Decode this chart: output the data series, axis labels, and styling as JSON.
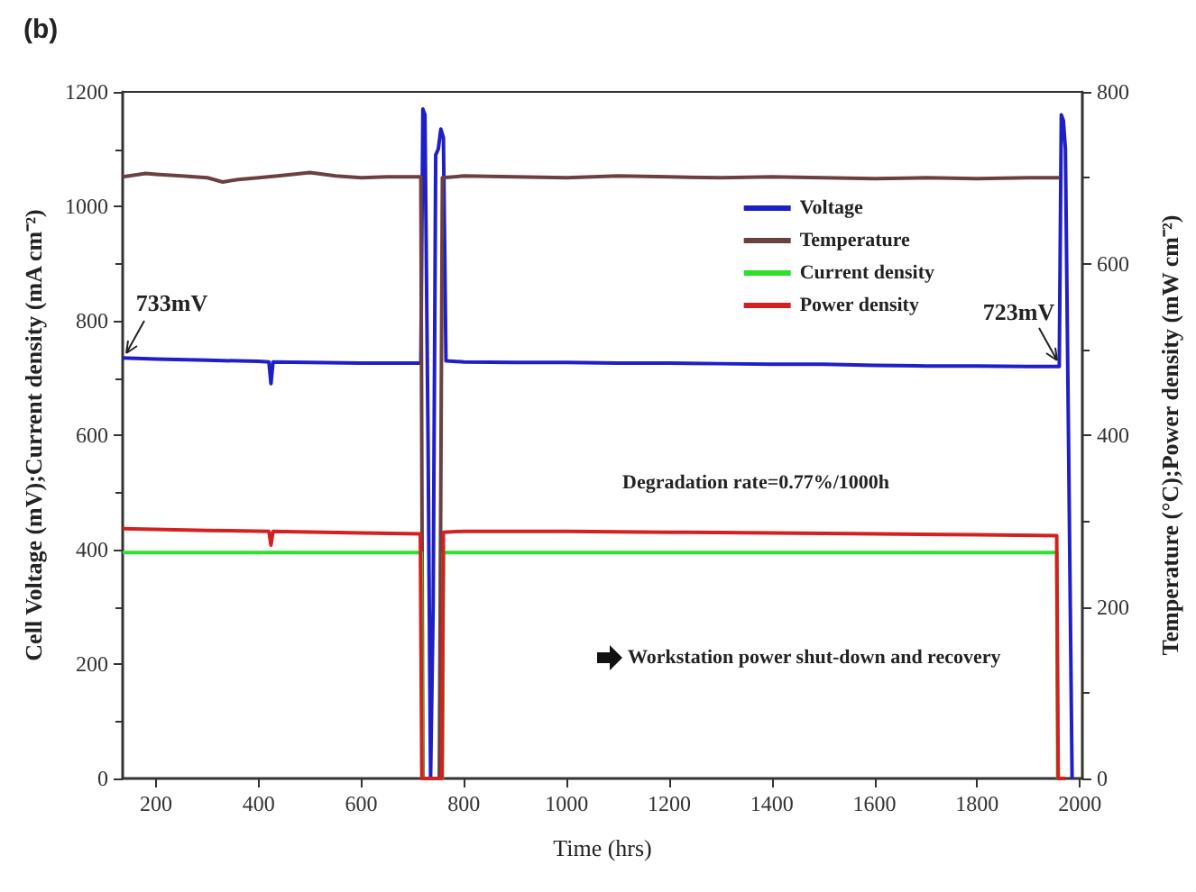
{
  "chart_data": {
    "type": "line",
    "title": "(b)",
    "xlabel": "Time (hrs)",
    "ylabel": "Cell Voltage (mV);Current density (mA cm⁻²)",
    "y2label": "Temperature (°C);Power density (mW cm⁻²)",
    "xlim": [
      135,
      2005
    ],
    "xticks": [
      200,
      400,
      600,
      800,
      1000,
      1200,
      1400,
      1600,
      1800,
      2000
    ],
    "ylim": [
      0,
      1200
    ],
    "yticks": [
      0,
      200,
      400,
      600,
      800,
      1000,
      1200
    ],
    "y2lim": [
      0,
      800
    ],
    "y2ticks": [
      0,
      200,
      400,
      600,
      800
    ],
    "grid": false,
    "legend": "top right",
    "marker": "none",
    "line_style": "solid",
    "annotations": [
      {
        "text": "733mV",
        "x": 140,
        "y": 735
      },
      {
        "text": "723mV",
        "x": 1958,
        "y": 720
      },
      "Degradation rate=0.77%/1000h",
      "Workstation power shut-down and recovery"
    ],
    "series": [
      {
        "name": "Voltage",
        "color": "#1f1fc8",
        "x": [
          135,
          200,
          300,
          400,
          420,
          424,
          428,
          500,
          600,
          700,
          716,
          720,
          724,
          730,
          735,
          740,
          745,
          750,
          755,
          760,
          765,
          800,
          900,
          1000,
          1100,
          1200,
          1300,
          1400,
          1500,
          1600,
          1700,
          1800,
          1900,
          1955,
          1960,
          1964,
          1968,
          1972,
          1978,
          1985
        ],
        "values": [
          735,
          733,
          731,
          729,
          728,
          690,
          728,
          727,
          726,
          726,
          726,
          1170,
          1160,
          600,
          0,
          300,
          1090,
          1100,
          1135,
          1120,
          730,
          728,
          727,
          727,
          726,
          726,
          725,
          724,
          724,
          722,
          721,
          721,
          720,
          720,
          720,
          1160,
          1150,
          1100,
          600,
          0
        ]
      },
      {
        "name": "Temperature",
        "color": "#6b4040",
        "x": [
          135,
          180,
          200,
          250,
          300,
          330,
          360,
          400,
          450,
          500,
          550,
          600,
          650,
          700,
          716,
          720,
          740,
          752,
          758,
          800,
          900,
          1000,
          1100,
          1200,
          1300,
          1400,
          1500,
          1600,
          1700,
          1800,
          1900,
          1960
        ],
        "values": [
          701,
          705,
          704,
          702,
          700,
          695,
          698,
          700,
          703,
          706,
          702,
          700,
          701,
          701,
          701,
          0,
          0,
          0,
          700,
          702,
          701,
          700,
          702,
          701,
          700,
          701,
          700,
          699,
          700,
          699,
          700,
          700
        ],
        "axis": "y2"
      },
      {
        "name": "Current density",
        "color": "#2ee02e",
        "x": [
          135,
          400,
          717,
          719,
          758,
          760,
          1000,
          1500,
          1955,
          1957
        ],
        "values": [
          395,
          395,
          395,
          0,
          0,
          395,
          395,
          395,
          395,
          0
        ]
      },
      {
        "name": "Power density",
        "color": "#d42020",
        "x": [
          135,
          300,
          420,
          424,
          428,
          600,
          715,
          718,
          757,
          760,
          800,
          1000,
          1200,
          1400,
          1600,
          1800,
          1955,
          1958,
          1972
        ],
        "values": [
          291,
          289,
          288,
          272,
          288,
          286,
          285,
          0,
          0,
          287,
          288,
          288,
          287,
          286,
          285,
          284,
          283,
          0,
          0
        ],
        "axis": "y2"
      }
    ]
  }
}
